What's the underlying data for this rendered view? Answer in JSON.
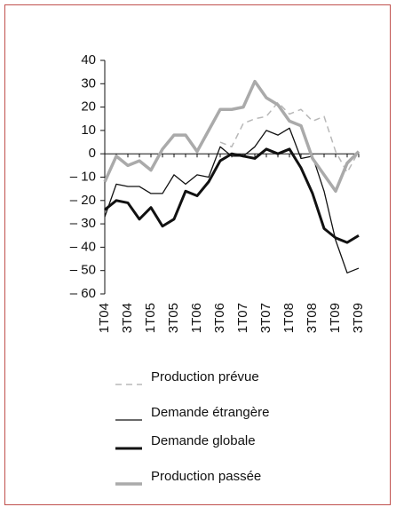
{
  "chart_data": {
    "type": "line",
    "categories": [
      "1T04",
      null,
      "3T04",
      null,
      "1T05",
      null,
      "3T05",
      null,
      "1T06",
      null,
      "3T06",
      null,
      "1T07",
      null,
      "3T07",
      null,
      "1T08",
      null,
      "3T08",
      null,
      "1T09",
      null,
      "3T09"
    ],
    "series": [
      {
        "name": "Production prévue",
        "color": "#b8b8b8",
        "style": "dashed",
        "width": 1.5,
        "values": [
          null,
          null,
          null,
          null,
          null,
          null,
          null,
          null,
          null,
          null,
          5,
          3,
          13,
          15,
          16,
          22,
          17,
          19,
          14,
          16,
          1,
          -8,
          1
        ]
      },
      {
        "name": "Demande étrangère",
        "color": "#111111",
        "style": "solid",
        "width": 1.3,
        "values": [
          -27,
          -13,
          -14,
          -14,
          -17,
          -17,
          -9,
          -13,
          -9,
          -10,
          3,
          -1,
          -1,
          3,
          10,
          8,
          11,
          -2,
          -1,
          -16,
          -37,
          -51,
          -49
        ]
      },
      {
        "name": "Demande globale",
        "color": "#111111",
        "style": "solid",
        "width": 3,
        "values": [
          -24,
          -20,
          -21,
          -28,
          -23,
          -31,
          -28,
          -16,
          -18,
          -12,
          -3,
          0,
          -1,
          -2,
          2,
          0,
          2,
          -6,
          -17,
          -32,
          -36,
          -38,
          -35
        ]
      },
      {
        "name": "Production passée",
        "color": "#aaaaaa",
        "style": "solid",
        "width": 3.5,
        "values": [
          -12,
          -1,
          -5,
          -3,
          -7,
          2,
          8,
          8,
          1,
          10,
          19,
          19,
          20,
          31,
          24,
          21,
          14,
          12,
          -2,
          -9,
          -16,
          -4,
          1
        ]
      }
    ],
    "ylim": [
      -60,
      40
    ],
    "yticks": [
      {
        "value": -60,
        "label": "– 60"
      },
      {
        "value": -50,
        "label": "– 50"
      },
      {
        "value": -40,
        "label": "– 40"
      },
      {
        "value": -30,
        "label": "– 30"
      },
      {
        "value": -20,
        "label": "– 20"
      },
      {
        "value": -10,
        "label": "– 10"
      },
      0,
      10,
      20,
      30,
      40
    ]
  }
}
